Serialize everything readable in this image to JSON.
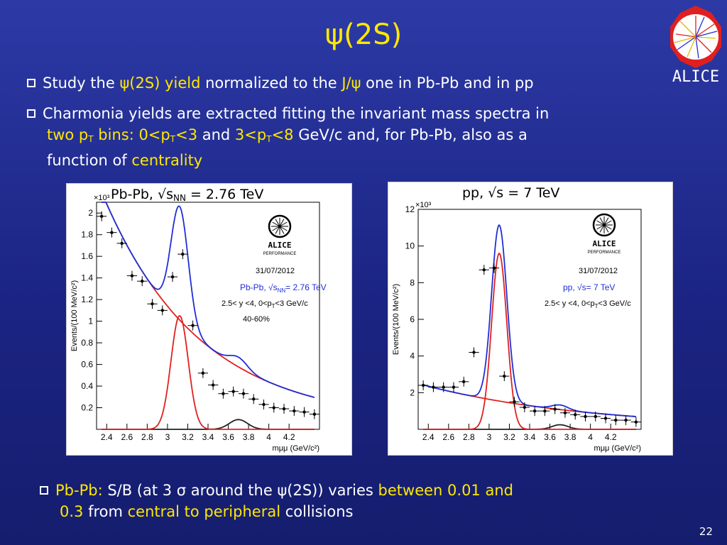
{
  "slide": {
    "title": "ψ(2S)",
    "logo_text": "ALICE",
    "page_number": "22",
    "bullet1": {
      "t1": "Study the ",
      "t2": "ψ(2S) yield",
      "t3": " normalized to the ",
      "t4": "J/ψ",
      "t5": " one in Pb-Pb and in pp"
    },
    "bullet2": {
      "t1": "Charmonia yields are extracted fitting the invariant mass spectra in",
      "t2": "two p",
      "t2sub": "T",
      "t3": " bins: 0<p",
      "t3sub": "T",
      "t4": "<3",
      "t5": " and ",
      "t6": "3<p",
      "t6sub": "T",
      "t7": "<8",
      "t8": " GeV/c and, for Pb-Pb, also as a",
      "t9": "function of ",
      "t10": "centrality"
    },
    "bullet3": {
      "t1": "Pb-Pb:",
      "t2": " S/B (at 3 σ around the ψ(2S)) varies ",
      "t3": "between 0.01 and",
      "t4": "0.3",
      "t5": " from ",
      "t6": "central to peripheral",
      "t7": " collisions"
    },
    "colors": {
      "accent": "#ffe800",
      "background": "#1b2483"
    }
  },
  "chart_data": [
    {
      "type": "scatter",
      "title_main": "Pb-Pb, √s",
      "title_sub": "NN",
      "title_tail": " = 2.76 TeV",
      "scale_label": "×10³",
      "ylabel": "Events/(100 MeV/c²)",
      "xlabel": "mμμ (GeV/c²)",
      "xlim": [
        2.3,
        4.5
      ],
      "ylim": [
        0,
        2.1
      ],
      "xticks": [
        2.4,
        2.6,
        2.8,
        3,
        3.2,
        3.4,
        3.6,
        3.8,
        4,
        4.2
      ],
      "yticks": [
        0.2,
        0.4,
        0.6,
        0.8,
        1,
        1.2,
        1.4,
        1.6,
        1.8,
        2
      ],
      "annotations": {
        "logo_name": "ALICE",
        "logo_sub": "PERFORMANCE",
        "date": "31/07/2012",
        "system": "Pb-Pb, √s",
        "system_sub": "NN",
        "system_tail": "= 2.76 TeV",
        "cuts": "2.5< y <4, 0<p",
        "cuts_sub": "T",
        "cuts_tail": "<3 GeV/c",
        "centrality": "40-60%"
      },
      "points": {
        "x": [
          2.35,
          2.45,
          2.55,
          2.65,
          2.75,
          2.85,
          2.95,
          3.05,
          3.15,
          3.25,
          3.35,
          3.45,
          3.55,
          3.65,
          3.75,
          3.85,
          3.95,
          4.05,
          4.15,
          4.25,
          4.35,
          4.45
        ],
        "y": [
          1.97,
          1.82,
          1.72,
          1.42,
          1.37,
          1.16,
          1.1,
          1.41,
          1.62,
          0.96,
          0.52,
          0.41,
          0.33,
          0.35,
          0.33,
          0.28,
          0.23,
          0.2,
          0.19,
          0.17,
          0.16,
          0.14
        ]
      },
      "series": [
        {
          "role": "total-fit",
          "color": "#1f2fd6"
        },
        {
          "role": "background",
          "color": "#e02020"
        },
        {
          "role": "signal",
          "color": "#e02020"
        }
      ]
    },
    {
      "type": "scatter",
      "title_main": "pp, √s = 7 TeV",
      "scale_label": "×10³",
      "ylabel": "Events/(100 MeV/c²)",
      "xlabel": "mμμ (GeV/c²)",
      "xlim": [
        2.3,
        4.5
      ],
      "ylim": [
        0,
        12
      ],
      "xticks": [
        2.4,
        2.6,
        2.8,
        3,
        3.2,
        3.4,
        3.6,
        3.8,
        4,
        4.2
      ],
      "yticks": [
        2,
        4,
        6,
        8,
        10,
        12
      ],
      "annotations": {
        "logo_name": "ALICE",
        "logo_sub": "PERFORMANCE",
        "date": "31/07/2012",
        "system": "pp, √s= 7 TeV",
        "cuts": "2.5< y <4, 0<p",
        "cuts_sub": "T",
        "cuts_tail": "<3 GeV/c"
      },
      "points": {
        "x": [
          2.35,
          2.45,
          2.55,
          2.65,
          2.75,
          2.85,
          2.95,
          3.05,
          3.15,
          3.25,
          3.35,
          3.45,
          3.55,
          3.65,
          3.75,
          3.85,
          3.95,
          4.05,
          4.15,
          4.25,
          4.35,
          4.45
        ],
        "y": [
          2.4,
          2.3,
          2.3,
          2.3,
          2.6,
          4.2,
          8.7,
          8.8,
          2.9,
          1.5,
          1.2,
          1.0,
          1.0,
          1.1,
          0.9,
          0.8,
          0.7,
          0.7,
          0.6,
          0.5,
          0.5,
          0.4
        ]
      },
      "series": [
        {
          "role": "total-fit",
          "color": "#1f2fd6"
        },
        {
          "role": "background",
          "color": "#e02020"
        },
        {
          "role": "signal",
          "color": "#e02020"
        }
      ]
    }
  ]
}
